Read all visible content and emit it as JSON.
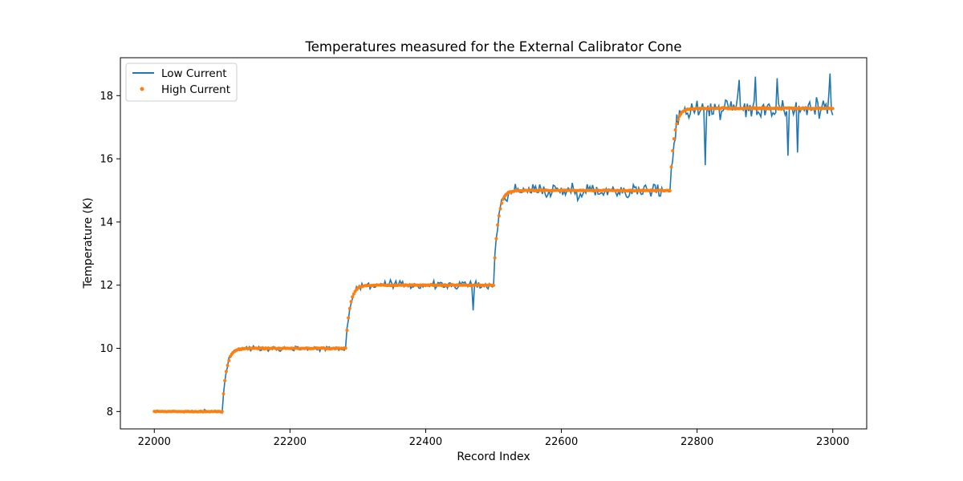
{
  "chart_data": {
    "type": "line",
    "title": "Temperatures measured for the External Calibrator Cone",
    "xlabel": "Record Index",
    "ylabel": "Temperature (K)",
    "xlim": [
      21950,
      23050
    ],
    "ylim": [
      7.45,
      19.2
    ],
    "xticks": [
      22000,
      22200,
      22400,
      22600,
      22800,
      23000
    ],
    "yticks": [
      8,
      10,
      12,
      14,
      16,
      18
    ],
    "grid": false,
    "legend_position": "upper-left",
    "colors": {
      "low": "#1f77b4",
      "high": "#ff7f0e"
    },
    "series": [
      {
        "name": "Low Current",
        "style": "line",
        "x_start": 22000,
        "x_end": 23000,
        "x_step": 2,
        "steps": [
          {
            "x0": 22000,
            "x1": 22100,
            "level": 8.0,
            "from": 8.0,
            "noise": 0.04
          },
          {
            "x0": 22100,
            "x1": 22282,
            "level": 10.0,
            "from": 8.0,
            "noise": 0.07
          },
          {
            "x0": 22282,
            "x1": 22500,
            "level": 12.0,
            "from": 10.0,
            "noise": 0.12
          },
          {
            "x0": 22500,
            "x1": 22760,
            "level": 15.0,
            "from": 12.0,
            "noise": 0.22
          },
          {
            "x0": 22760,
            "x1": 23000,
            "level": 17.6,
            "from": 15.0,
            "noise": 0.35
          }
        ],
        "spikes": [
          {
            "x": 22470,
            "y": 11.2
          },
          {
            "x": 22812,
            "y": 15.8
          },
          {
            "x": 22862,
            "y": 18.5
          },
          {
            "x": 22886,
            "y": 18.6
          },
          {
            "x": 22918,
            "y": 18.55
          },
          {
            "x": 22934,
            "y": 16.1
          },
          {
            "x": 22948,
            "y": 16.2
          },
          {
            "x": 22996,
            "y": 18.7
          }
        ]
      },
      {
        "name": "High Current",
        "style": "scatter",
        "x_start": 22000,
        "x_end": 23000,
        "x_step": 2,
        "steps": [
          {
            "x0": 22000,
            "x1": 22100,
            "level": 8.0,
            "from": 8.0,
            "noise": 0.01
          },
          {
            "x0": 22100,
            "x1": 22282,
            "level": 10.0,
            "from": 8.0,
            "noise": 0.015
          },
          {
            "x0": 22282,
            "x1": 22500,
            "level": 12.0,
            "from": 10.0,
            "noise": 0.015
          },
          {
            "x0": 22500,
            "x1": 22760,
            "level": 15.0,
            "from": 12.0,
            "noise": 0.015
          },
          {
            "x0": 22760,
            "x1": 23000,
            "level": 17.6,
            "from": 15.0,
            "noise": 0.02
          }
        ]
      }
    ]
  }
}
